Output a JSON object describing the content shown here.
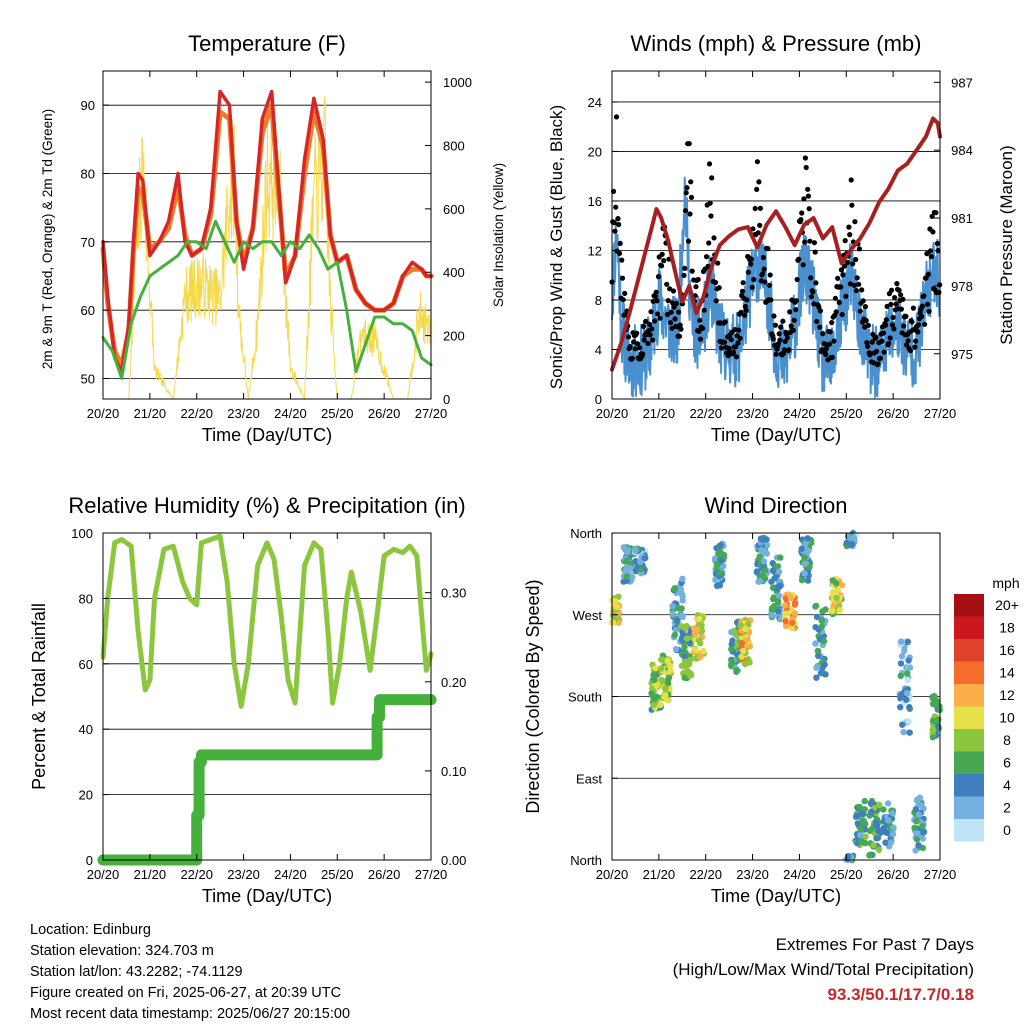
{
  "footer": {
    "location": "Location: Edinburg",
    "elevation": "Station elevation: 324.703 m",
    "latlon": "Station lat/lon: 43.2282; -74.1129",
    "created": "Figure created on Fri, 2025-06-27, at 20:39 UTC",
    "recent": "Most recent data timestamp: 2025/06/27 20:15:00",
    "extremes_title": "Extremes For Past 7 Days",
    "extremes_sub": "(High/Low/Max Wind/Total Precipitation)",
    "extremes_value": "93.3/50.1/17.7/0.18"
  },
  "colors": {
    "temp2m": "#d62728",
    "temp9m": "#f07a28",
    "dewpoint": "#46b03c",
    "solar": "#f5d94a",
    "gust": "#000000",
    "wind": "#4a90cf",
    "pressure": "#a52020",
    "rh": "#8cc63f",
    "precip": "#46b03c"
  },
  "x_ticks": [
    "20/20",
    "21/20",
    "22/20",
    "23/20",
    "24/20",
    "25/20",
    "26/20",
    "27/20"
  ],
  "chart_data": [
    {
      "type": "line",
      "title": "Temperature (F)",
      "xlabel": "Time (Day/UTC)",
      "ylabel": "2m & 9m T (Red, Orange) & 2m Td (Green)",
      "ylabel_right": "Solar Insolation (Yellow)",
      "ylim": [
        47,
        95
      ],
      "yticks": [
        50,
        60,
        70,
        80,
        90
      ],
      "ylim_right": [
        0,
        1035
      ],
      "yticks_right": [
        0,
        200,
        400,
        600,
        800,
        1000
      ],
      "series": [
        {
          "name": "2m T",
          "axis": "left",
          "x": [
            0,
            0.1,
            0.25,
            0.4,
            0.55,
            0.65,
            0.75,
            0.85,
            1.0,
            1.2,
            1.4,
            1.6,
            1.75,
            1.9,
            2.1,
            2.3,
            2.5,
            2.7,
            2.85,
            3.0,
            3.2,
            3.4,
            3.6,
            3.75,
            3.9,
            4.1,
            4.3,
            4.5,
            4.7,
            4.85,
            5.0,
            5.2,
            5.4,
            5.6,
            5.8,
            6.0,
            6.2,
            6.4,
            6.6,
            6.8,
            6.9,
            7.0
          ],
          "y": [
            70,
            62,
            53,
            51,
            58,
            70,
            80,
            79,
            68,
            70,
            73,
            80,
            70,
            68,
            69,
            75,
            92,
            90,
            73,
            66,
            72,
            88,
            92,
            78,
            64,
            68,
            82,
            91,
            85,
            71,
            67,
            68,
            63,
            61,
            60,
            60,
            61,
            65,
            67,
            66,
            65,
            65
          ]
        },
        {
          "name": "9m T",
          "axis": "left",
          "x": [
            0,
            0.1,
            0.25,
            0.4,
            0.55,
            0.65,
            0.75,
            0.85,
            1.0,
            1.2,
            1.4,
            1.6,
            1.75,
            1.9,
            2.1,
            2.3,
            2.5,
            2.7,
            2.85,
            3.0,
            3.2,
            3.4,
            3.6,
            3.75,
            3.9,
            4.1,
            4.3,
            4.5,
            4.7,
            4.85,
            5.0,
            5.2,
            5.4,
            5.6,
            5.8,
            6.0,
            6.2,
            6.4,
            6.6,
            6.8,
            6.9,
            7.0
          ],
          "y": [
            69,
            61,
            54,
            52,
            57,
            69,
            78,
            77,
            69,
            70,
            72,
            78,
            71,
            68,
            69,
            74,
            89,
            88,
            73,
            67,
            72,
            86,
            90,
            77,
            65,
            68,
            80,
            89,
            84,
            71,
            67,
            68,
            63,
            61,
            60,
            60,
            61,
            65,
            66,
            66,
            65,
            65
          ]
        },
        {
          "name": "2m Td",
          "axis": "left",
          "x": [
            0,
            0.2,
            0.4,
            0.6,
            0.8,
            1.0,
            1.2,
            1.4,
            1.6,
            1.8,
            2.0,
            2.2,
            2.4,
            2.6,
            2.8,
            3.0,
            3.2,
            3.4,
            3.6,
            3.8,
            4.0,
            4.2,
            4.4,
            4.6,
            4.8,
            5.0,
            5.2,
            5.4,
            5.6,
            5.8,
            6.0,
            6.2,
            6.4,
            6.6,
            6.8,
            7.0
          ],
          "y": [
            56,
            54,
            50,
            58,
            62,
            65,
            66,
            67,
            68,
            70,
            70,
            69,
            73,
            70,
            67,
            70,
            69,
            70,
            70,
            68,
            70,
            69,
            71,
            69,
            66,
            67,
            60,
            51,
            55,
            59,
            59,
            58,
            58,
            57,
            53,
            52
          ]
        },
        {
          "name": "Solar",
          "axis": "right",
          "x": [
            0,
            0.55,
            0.7,
            0.85,
            1.1,
            1.5,
            1.75,
            2.1,
            2.5,
            2.7,
            2.8,
            2.9,
            3.1,
            3.3,
            3.5,
            3.75,
            4.0,
            4.3,
            4.5,
            4.75,
            4.85,
            5.0,
            5.3,
            5.5,
            5.8,
            6.2,
            6.5,
            6.75,
            7.0
          ],
          "y": [
            0,
            0,
            600,
            940,
            120,
            0,
            420,
            470,
            400,
            840,
            920,
            350,
            0,
            300,
            900,
            880,
            130,
            0,
            820,
            980,
            400,
            0,
            0,
            260,
            240,
            0,
            0,
            350,
            270
          ]
        }
      ]
    },
    {
      "type": "line",
      "title": "Winds (mph) & Pressure (mb)",
      "xlabel": "Time (Day/UTC)",
      "ylabel": "Sonic/Prop Wind & Gust (Blue, Black)",
      "ylabel_right": "Station Pressure (Maroon)",
      "ylim": [
        0,
        26.5
      ],
      "yticks": [
        0,
        4,
        8,
        12,
        16,
        20,
        24
      ],
      "ylim_right": [
        973.0,
        987.5
      ],
      "yticks_right": [
        975,
        978,
        981,
        984,
        987
      ],
      "series": [
        {
          "name": "Wind",
          "axis": "left",
          "x": [
            0,
            0.1,
            0.2,
            0.3,
            0.4,
            0.6,
            0.8,
            1.0,
            1.2,
            1.4,
            1.55,
            1.7,
            1.9,
            2.1,
            2.3,
            2.5,
            2.7,
            2.9,
            3.1,
            3.3,
            3.5,
            3.7,
            3.9,
            4.1,
            4.3,
            4.5,
            4.7,
            4.9,
            5.1,
            5.3,
            5.5,
            5.7,
            5.9,
            6.1,
            6.3,
            6.5,
            6.7,
            6.9,
            7.0
          ],
          "y": [
            8,
            14,
            6,
            4,
            3,
            3,
            4,
            8,
            6,
            5,
            17,
            6,
            5,
            9,
            5,
            4,
            4,
            8,
            11,
            9,
            4,
            3,
            6,
            11,
            8,
            3,
            3,
            7,
            10,
            6,
            3,
            3,
            5,
            6,
            4,
            4,
            8,
            11,
            9
          ]
        },
        {
          "name": "Gust",
          "axis": "left",
          "x": [
            0,
            0.1,
            0.2,
            0.35,
            0.5,
            0.7,
            0.9,
            1.1,
            1.3,
            1.5,
            1.6,
            1.75,
            1.9,
            2.1,
            2.3,
            2.5,
            2.7,
            2.9,
            3.1,
            3.3,
            3.5,
            3.7,
            3.9,
            4.1,
            4.3,
            4.5,
            4.7,
            4.9,
            5.1,
            5.3,
            5.5,
            5.7,
            5.9,
            6.1,
            6.3,
            6.5,
            6.7,
            6.9,
            7.0
          ],
          "y": [
            14,
            23,
            12,
            6,
            5,
            6,
            8,
            14,
            9,
            8,
            24,
            11,
            8,
            20,
            8,
            5,
            6,
            12,
            19,
            13,
            6,
            6,
            9,
            20,
            13,
            5,
            6,
            12,
            17,
            11,
            5,
            5,
            8,
            10,
            7,
            7,
            11,
            16,
            12
          ]
        },
        {
          "name": "Pressure",
          "axis": "right",
          "x": [
            0,
            0.2,
            0.4,
            0.6,
            0.8,
            0.95,
            1.05,
            1.2,
            1.35,
            1.5,
            1.65,
            1.8,
            1.95,
            2.1,
            2.3,
            2.5,
            2.7,
            2.9,
            3.1,
            3.3,
            3.5,
            3.7,
            3.9,
            4.1,
            4.3,
            4.5,
            4.7,
            4.9,
            5.1,
            5.3,
            5.5,
            5.7,
            5.9,
            6.1,
            6.3,
            6.5,
            6.7,
            6.85,
            6.95,
            7.0
          ],
          "y": [
            974.3,
            975.5,
            977.0,
            978.6,
            980.2,
            981.4,
            981.0,
            980.0,
            978.6,
            977.3,
            978.0,
            976.8,
            977.5,
            978.7,
            979.8,
            980.2,
            980.5,
            980.6,
            979.7,
            980.7,
            981.3,
            980.6,
            979.8,
            980.7,
            981.0,
            980.1,
            980.6,
            979.0,
            979.6,
            980.1,
            980.8,
            981.7,
            982.3,
            983.1,
            983.4,
            984.0,
            984.6,
            985.4,
            985.2,
            984.6
          ]
        }
      ]
    },
    {
      "type": "line",
      "title": "Relative Humidity (%) & Precipitation (in)",
      "xlabel": "Time (Day/UTC)",
      "ylabel": "Percent & Total Rainfall",
      "ylim": [
        0,
        100
      ],
      "yticks": [
        0,
        20,
        40,
        60,
        80,
        100
      ],
      "ylim_right": [
        0,
        0.367
      ],
      "yticks_right": [
        "0.00",
        "0.10",
        "0.20",
        "0.30"
      ],
      "series": [
        {
          "name": "RH",
          "axis": "left",
          "x": [
            0,
            0.1,
            0.25,
            0.4,
            0.6,
            0.75,
            0.9,
            1.0,
            1.1,
            1.3,
            1.5,
            1.7,
            1.85,
            2.0,
            2.1,
            2.3,
            2.5,
            2.65,
            2.8,
            2.95,
            3.1,
            3.3,
            3.5,
            3.65,
            3.8,
            3.95,
            4.1,
            4.3,
            4.5,
            4.65,
            4.8,
            4.9,
            5.05,
            5.2,
            5.3,
            5.5,
            5.7,
            5.85,
            6.0,
            6.2,
            6.4,
            6.55,
            6.7,
            6.8,
            6.9,
            7.0
          ],
          "y": [
            62,
            80,
            97,
            98,
            96,
            70,
            52,
            55,
            80,
            95,
            96,
            85,
            80,
            78,
            97,
            98,
            99,
            85,
            60,
            47,
            60,
            90,
            97,
            92,
            75,
            55,
            48,
            90,
            97,
            95,
            70,
            48,
            60,
            80,
            88,
            76,
            58,
            75,
            93,
            95,
            94,
            96,
            93,
            75,
            58,
            63
          ]
        },
        {
          "name": "Precip",
          "axis": "right",
          "x": [
            0,
            1.95,
            2.0,
            2.05,
            2.1,
            4.1,
            5.8,
            5.85,
            5.9,
            7.0
          ],
          "y": [
            0.0,
            0.0,
            0.05,
            0.11,
            0.118,
            0.118,
            0.118,
            0.16,
            0.18,
            0.18
          ]
        }
      ]
    },
    {
      "type": "scatter",
      "title": "Wind Direction",
      "xlabel": "Time (Day/UTC)",
      "ylabel": "Direction (Colored By Speed)",
      "y_categories": [
        "North",
        "East",
        "South",
        "West",
        "North"
      ],
      "ylim": [
        0,
        360
      ],
      "legend_title": "mph",
      "legend_labels": [
        "20+",
        "18",
        "16",
        "14",
        "12",
        "10",
        "8",
        "6",
        "4",
        "2",
        "0"
      ],
      "legend_colors": [
        "#a50f15",
        "#cb181d",
        "#e0412a",
        "#f46d2c",
        "#fdae4b",
        "#e6e04a",
        "#8cc63f",
        "#46a853",
        "#3f7fbf",
        "#74b0e0",
        "#bfe3f7"
      ],
      "clusters": [
        {
          "x": 0.05,
          "dir": 275,
          "speed": 10,
          "spread": 15
        },
        {
          "x": 0.35,
          "dir": 325,
          "speed": 4,
          "spread": 20
        },
        {
          "x": 0.6,
          "dir": 330,
          "speed": 3,
          "spread": 15
        },
        {
          "x": 0.95,
          "dir": 190,
          "speed": 7,
          "spread": 25
        },
        {
          "x": 1.15,
          "dir": 200,
          "speed": 8,
          "spread": 25
        },
        {
          "x": 1.4,
          "dir": 270,
          "speed": 4,
          "spread": 40
        },
        {
          "x": 1.6,
          "dir": 230,
          "speed": 6,
          "spread": 30
        },
        {
          "x": 1.85,
          "dir": 245,
          "speed": 10,
          "spread": 25
        },
        {
          "x": 2.3,
          "dir": 325,
          "speed": 4,
          "spread": 25
        },
        {
          "x": 2.65,
          "dir": 235,
          "speed": 5,
          "spread": 30
        },
        {
          "x": 2.85,
          "dir": 240,
          "speed": 11,
          "spread": 25
        },
        {
          "x": 3.2,
          "dir": 330,
          "speed": 4,
          "spread": 25
        },
        {
          "x": 3.5,
          "dir": 300,
          "speed": 4,
          "spread": 35
        },
        {
          "x": 3.8,
          "dir": 275,
          "speed": 12,
          "spread": 20
        },
        {
          "x": 4.15,
          "dir": 330,
          "speed": 4,
          "spread": 25
        },
        {
          "x": 4.45,
          "dir": 240,
          "speed": 4,
          "spread": 40
        },
        {
          "x": 4.8,
          "dir": 290,
          "speed": 9,
          "spread": 20
        },
        {
          "x": 5.1,
          "dir": 355,
          "speed": 3,
          "spread": 10
        },
        {
          "x": 5.3,
          "dir": 40,
          "speed": 5,
          "spread": 25
        },
        {
          "x": 5.6,
          "dir": 35,
          "speed": 6,
          "spread": 30
        },
        {
          "x": 5.9,
          "dir": 40,
          "speed": 4,
          "spread": 25
        },
        {
          "x": 6.25,
          "dir": 200,
          "speed": 3,
          "spread": 60
        },
        {
          "x": 6.55,
          "dir": 40,
          "speed": 4,
          "spread": 30
        },
        {
          "x": 6.95,
          "dir": 160,
          "speed": 7,
          "spread": 25
        }
      ]
    }
  ]
}
